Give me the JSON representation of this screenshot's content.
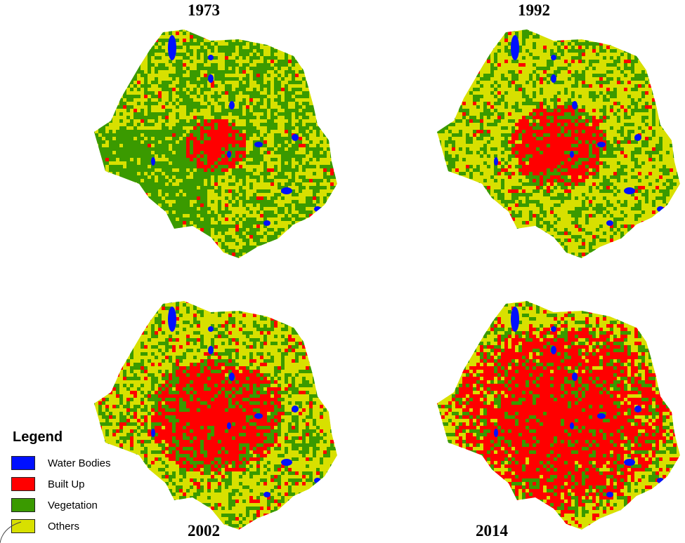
{
  "legend": {
    "title": "Legend",
    "items": [
      {
        "label": "Water Bodies",
        "color": "#0010ff"
      },
      {
        "label": "Built Up",
        "color": "#ff0000"
      },
      {
        "label": "Vegetation",
        "color": "#3a9a00"
      },
      {
        "label": "Others",
        "color": "#d8e000"
      }
    ]
  },
  "maps": [
    {
      "year": "1973",
      "builtup_share": 0.06,
      "water_share": 0.012,
      "vegetation_share": 0.48
    },
    {
      "year": "1992",
      "builtup_share": 0.16,
      "water_share": 0.012,
      "vegetation_share": 0.33
    },
    {
      "year": "2002",
      "builtup_share": 0.27,
      "water_share": 0.012,
      "vegetation_share": 0.33
    },
    {
      "year": "2014",
      "builtup_share": 0.5,
      "water_share": 0.01,
      "vegetation_share": 0.22
    }
  ]
}
